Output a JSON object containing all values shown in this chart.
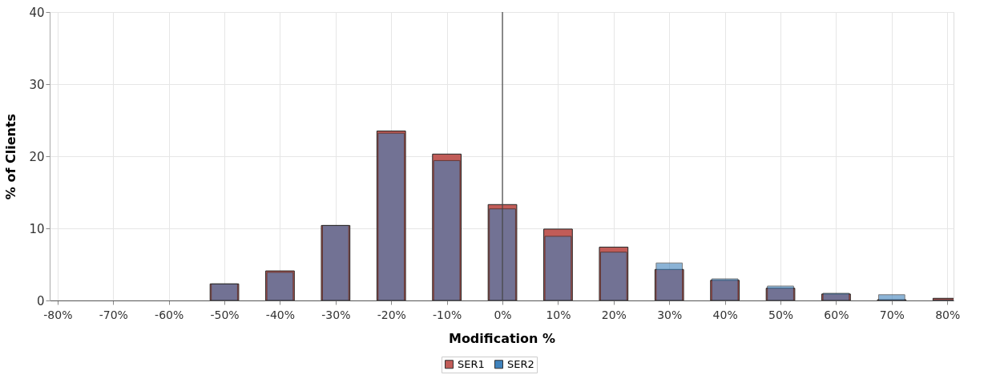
{
  "chart_data": {
    "type": "bar",
    "xlabel": "Modification %",
    "ylabel": "% of Clients",
    "x": [
      -50,
      -40,
      -30,
      -20,
      -10,
      0,
      10,
      20,
      30,
      40,
      50,
      60,
      70,
      80
    ],
    "series": [
      {
        "name": "SER1",
        "color": "#c15c58",
        "values": [
          2.3,
          4.1,
          10.4,
          23.5,
          20.3,
          13.3,
          9.9,
          7.4,
          4.3,
          2.8,
          1.7,
          0.9,
          0.1,
          0.3
        ]
      },
      {
        "name": "SER2",
        "color": "#3f82bc",
        "values": [
          2.3,
          3.9,
          10.4,
          23.2,
          19.4,
          12.7,
          8.9,
          6.7,
          5.2,
          3.0,
          2.0,
          1.0,
          0.8,
          0.1
        ]
      }
    ],
    "xlim": [
      -80.7,
      80.4
    ],
    "xticks": [
      {
        "value": -80,
        "label": "-80%"
      },
      {
        "value": -70,
        "label": "-70%"
      },
      {
        "value": -60,
        "label": "-60%"
      },
      {
        "value": -50,
        "label": "-50%"
      },
      {
        "value": -40,
        "label": "-40%"
      },
      {
        "value": -30,
        "label": "-30%"
      },
      {
        "value": -20,
        "label": "-20%"
      },
      {
        "value": -10,
        "label": "-10%"
      },
      {
        "value": 0,
        "label": "0%"
      },
      {
        "value": 10,
        "label": "10%"
      },
      {
        "value": 20,
        "label": "20%"
      },
      {
        "value": 30,
        "label": "30%"
      },
      {
        "value": 40,
        "label": "40%"
      },
      {
        "value": 50,
        "label": "50%"
      },
      {
        "value": 60,
        "label": "60%"
      },
      {
        "value": 70,
        "label": "70%"
      },
      {
        "value": 80,
        "label": "80%"
      }
    ],
    "ylim": [
      0,
      40
    ],
    "yticks": [
      0,
      10,
      20,
      30,
      40
    ],
    "ref_lines": [
      {
        "axis": "x",
        "value": 0,
        "color": "#444444"
      }
    ],
    "grid": true,
    "legend": "bottom"
  }
}
